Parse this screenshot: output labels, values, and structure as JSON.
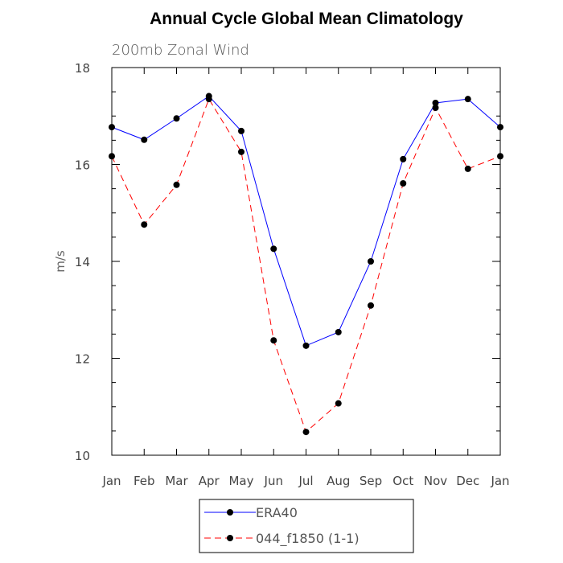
{
  "chart_data": {
    "type": "line",
    "title": "Annual Cycle Global Mean Climatology",
    "subtitle": "200mb Zonal Wind",
    "xlabel": "",
    "ylabel": "m/s",
    "categories": [
      "Jan",
      "Feb",
      "Mar",
      "Apr",
      "May",
      "Jun",
      "Jul",
      "Aug",
      "Sep",
      "Oct",
      "Nov",
      "Dec",
      "Jan"
    ],
    "ylim": [
      10,
      18
    ],
    "yticks": [
      "10",
      "12",
      "14",
      "16",
      "18"
    ],
    "grid": false,
    "legend_position": "bottom",
    "series": [
      {
        "name": "ERA40",
        "color": "#0000ff",
        "dash": "solid",
        "values": [
          16.77,
          16.51,
          16.95,
          17.41,
          16.69,
          14.26,
          12.26,
          12.54,
          14.0,
          16.11,
          17.27,
          17.35,
          16.77
        ]
      },
      {
        "name": "044_f1850 (1-1)",
        "color": "#ff0000",
        "dash": "dashed",
        "values": [
          16.17,
          14.76,
          15.58,
          17.35,
          16.26,
          12.37,
          10.48,
          11.07,
          13.09,
          15.61,
          17.17,
          15.91,
          16.17
        ]
      }
    ]
  }
}
